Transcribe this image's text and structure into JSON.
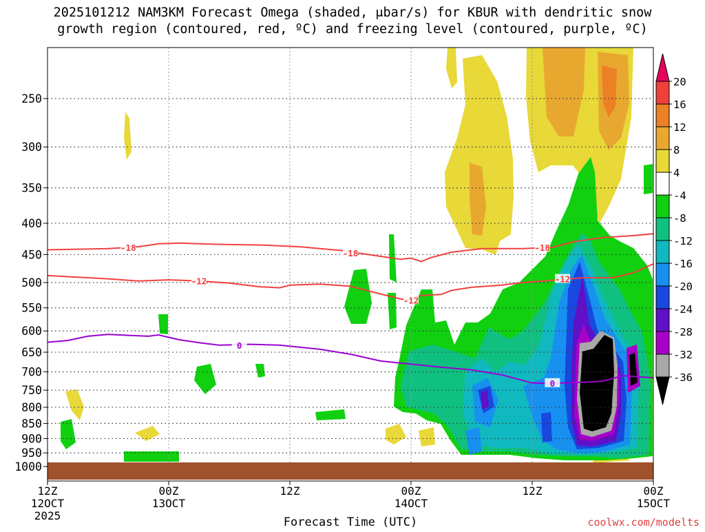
{
  "chart_data": {
    "type": "heatmap",
    "title_line1": "2025101212 NAM3KM Forecast Omega (shaded, μbar/s) for KBUR with dendritic snow",
    "title_line2": "growth region (contoured, red, ºC) and freezing level (contoured, purple, ºC)",
    "xlabel": "Forecast Time (UTC)",
    "credit": "coolwx.com/modelts",
    "y_axis": {
      "type": "log-pressure",
      "range_hpa": [
        1000,
        200
      ],
      "tick_labels": [
        250,
        300,
        350,
        400,
        450,
        500,
        550,
        600,
        650,
        700,
        750,
        800,
        850,
        900,
        950,
        1000
      ]
    },
    "x_axis": {
      "range_hours": [
        0,
        60
      ],
      "ticks": [
        {
          "hour": 0,
          "line1": "12Z",
          "line2": "12OCT",
          "line3": "2025"
        },
        {
          "hour": 12,
          "line1": "00Z",
          "line2": "13OCT",
          "line3": ""
        },
        {
          "hour": 24,
          "line1": "12Z",
          "line2": "",
          "line3": ""
        },
        {
          "hour": 36,
          "line1": "00Z",
          "line2": "14OCT",
          "line3": ""
        },
        {
          "hour": 48,
          "line1": "12Z",
          "line2": "",
          "line3": ""
        },
        {
          "hour": 60,
          "line1": "00Z",
          "line2": "15OCT",
          "line3": ""
        }
      ]
    },
    "colorbar": {
      "labels": [
        20,
        16,
        12,
        8,
        4,
        -4,
        -8,
        -12,
        -16,
        -20,
        -24,
        -28,
        -32,
        -36
      ],
      "colors": [
        "#e8005e",
        "#f0403a",
        "#ec8024",
        "#e8a830",
        "#e8d838",
        "#ffffff",
        "#10d010",
        "#10c080",
        "#10b8c0",
        "#1890f0",
        "#1848e0",
        "#6010c8",
        "#a800c8",
        "#a8a8a8",
        "#000000"
      ]
    },
    "contours": {
      "red_color": "#f04040",
      "purple_color": "#9b00d0",
      "series": [
        {
          "name": "-18",
          "kind": "red",
          "points": [
            [
              0,
              442
            ],
            [
              3,
              441
            ],
            [
              6,
              440
            ],
            [
              9,
              437
            ],
            [
              11,
              432
            ],
            [
              13,
              431
            ],
            [
              17,
              433
            ],
            [
              21,
              434
            ],
            [
              25,
              437
            ],
            [
              29,
              443
            ],
            [
              33,
              453
            ],
            [
              35,
              458
            ],
            [
              36,
              456
            ],
            [
              37,
              462
            ],
            [
              38,
              455
            ],
            [
              40,
              446
            ],
            [
              43,
              440
            ],
            [
              47,
              440
            ],
            [
              50,
              438
            ],
            [
              52,
              429
            ],
            [
              55,
              422
            ],
            [
              58,
              419
            ],
            [
              60,
              416
            ]
          ],
          "labels": [
            [
              8,
              438
            ],
            [
              30,
              447
            ],
            [
              49,
              438
            ]
          ]
        },
        {
          "name": "-12",
          "kind": "red",
          "points": [
            [
              0,
              487
            ],
            [
              3,
              490
            ],
            [
              6,
              493
            ],
            [
              9,
              497
            ],
            [
              12,
              495
            ],
            [
              15,
              497
            ],
            [
              18,
              501
            ],
            [
              21,
              508
            ],
            [
              23,
              510
            ],
            [
              24,
              505
            ],
            [
              27,
              503
            ],
            [
              30,
              507
            ],
            [
              33,
              522
            ],
            [
              35,
              532
            ],
            [
              36,
              534
            ],
            [
              37,
              525
            ],
            [
              39,
              523
            ],
            [
              40,
              515
            ],
            [
              42,
              509
            ],
            [
              45,
              505
            ],
            [
              47,
              500
            ],
            [
              50,
              496
            ],
            [
              53,
              491
            ],
            [
              56,
              491
            ],
            [
              58,
              482
            ],
            [
              60,
              466
            ]
          ],
          "labels": [
            [
              15,
              497
            ],
            [
              36,
              534
            ],
            [
              51,
              493
            ]
          ]
        },
        {
          "name": "0",
          "kind": "purple",
          "points": [
            [
              0,
              626
            ],
            [
              2,
              622
            ],
            [
              4,
              612
            ],
            [
              6,
              608
            ],
            [
              8,
              610
            ],
            [
              10,
              612
            ],
            [
              11,
              609
            ],
            [
              13,
              620
            ],
            [
              15,
              627
            ],
            [
              17,
              633
            ],
            [
              20,
              631
            ],
            [
              23,
              633
            ],
            [
              27,
              643
            ],
            [
              30,
              655
            ],
            [
              33,
              672
            ],
            [
              36,
              680
            ],
            [
              39,
              688
            ],
            [
              42,
              695
            ],
            [
              45,
              708
            ],
            [
              48,
              730
            ],
            [
              50,
              731
            ],
            [
              53,
              728
            ],
            [
              55,
              725
            ],
            [
              57,
              710
            ],
            [
              60,
              716
            ]
          ],
          "labels": [
            [
              19,
              633
            ],
            [
              50,
              730
            ]
          ]
        }
      ]
    }
  }
}
